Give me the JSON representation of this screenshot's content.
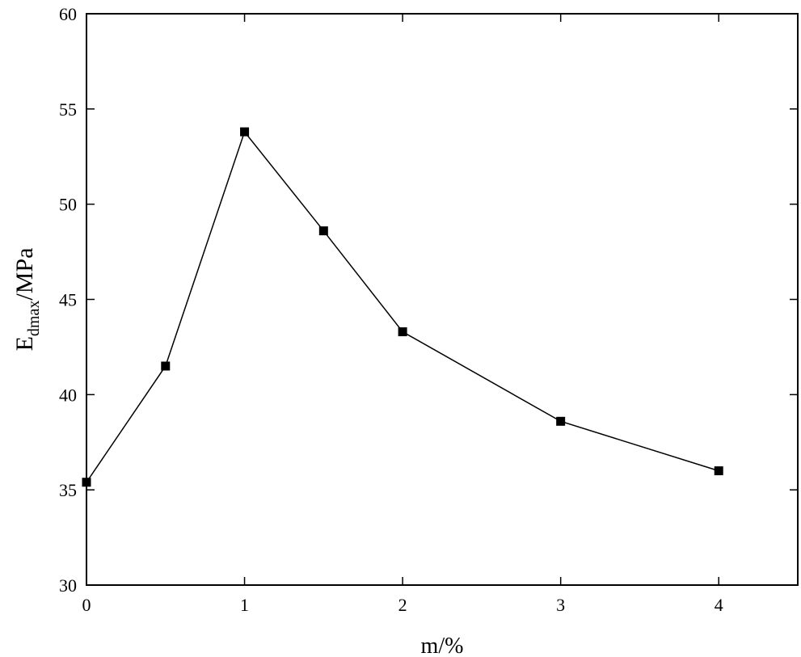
{
  "chart_data": {
    "type": "line",
    "xlabel": "m/%",
    "ylabel": {
      "base": "E",
      "subscript": "dmax",
      "suffix": "/MPa"
    },
    "xlim": [
      0,
      4.5
    ],
    "ylim": [
      30,
      60
    ],
    "x_ticks": [
      0,
      1,
      2,
      3,
      4
    ],
    "y_ticks": [
      30,
      35,
      40,
      45,
      50,
      55,
      60
    ],
    "grid": false,
    "series": [
      {
        "marker": "square",
        "color": "#000000",
        "points": [
          {
            "x": 0,
            "y": 35.4
          },
          {
            "x": 0.5,
            "y": 41.5
          },
          {
            "x": 1,
            "y": 53.8
          },
          {
            "x": 1.5,
            "y": 48.6
          },
          {
            "x": 2,
            "y": 43.3
          },
          {
            "x": 3,
            "y": 38.6
          },
          {
            "x": 4,
            "y": 36.0
          }
        ]
      }
    ]
  }
}
